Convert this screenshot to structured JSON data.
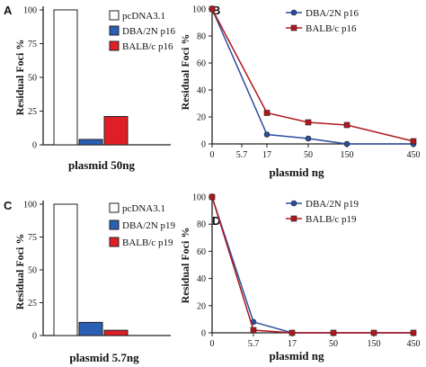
{
  "chart_data": [
    {
      "panel": "A",
      "type": "bar",
      "ylabel": "Residual Foci %",
      "xlabel": "plasmid 50ng",
      "ylim": [
        0,
        100
      ],
      "yticks": [
        "0",
        "25",
        "50",
        "75",
        "100"
      ],
      "colors": [
        "#ffffff",
        "#2b5fb4",
        "#e01e26"
      ],
      "series": [
        {
          "name": "pcDNA3.1",
          "values": [
            100
          ]
        },
        {
          "name": "DBA/2N p16",
          "values": [
            4
          ]
        },
        {
          "name": "BALB/c p16",
          "values": [
            21
          ]
        }
      ]
    },
    {
      "panel": "B",
      "type": "line",
      "ylabel": "Residual Foci %",
      "xlabel": "plasmid ng",
      "ylim": [
        0,
        100
      ],
      "yticks": [
        "0",
        "20",
        "40",
        "60",
        "80",
        "100"
      ],
      "x": [
        "0",
        "5.7",
        "17",
        "50",
        "150",
        "450"
      ],
      "series": [
        {
          "name": "DBA/2N p16",
          "color": "#2b4fa0",
          "marker": "circle",
          "values": [
            100,
            null,
            7,
            4,
            0,
            0
          ]
        },
        {
          "name": "BALB/c p16",
          "color": "#b0181e",
          "marker": "square",
          "values": [
            100,
            null,
            23,
            16,
            14,
            2
          ]
        }
      ]
    },
    {
      "panel": "C",
      "type": "bar",
      "ylabel": "Residual Foci %",
      "xlabel": "plasmid 5.7ng",
      "ylim": [
        0,
        100
      ],
      "yticks": [
        "0",
        "25",
        "50",
        "75",
        "100"
      ],
      "colors": [
        "#ffffff",
        "#2b5fb4",
        "#e01e26"
      ],
      "series": [
        {
          "name": "pcDNA3.1",
          "values": [
            100
          ]
        },
        {
          "name": "DBA/2N p19",
          "values": [
            10
          ]
        },
        {
          "name": "BALB/c p19",
          "values": [
            4
          ]
        }
      ]
    },
    {
      "panel": "D",
      "type": "line",
      "ylabel": "Residual Foci %",
      "xlabel": "plasmid ng",
      "ylim": [
        0,
        100
      ],
      "yticks": [
        "0",
        "20",
        "40",
        "60",
        "80",
        "100"
      ],
      "x": [
        "0",
        "5.7",
        "17",
        "50",
        "150",
        "450"
      ],
      "series": [
        {
          "name": "DBA/2N p19",
          "color": "#2b4fa0",
          "marker": "circle",
          "values": [
            100,
            8,
            0,
            0,
            0,
            0
          ]
        },
        {
          "name": "BALB/c p19",
          "color": "#b0181e",
          "marker": "square",
          "values": [
            100,
            2,
            0,
            0,
            0,
            0
          ]
        }
      ]
    }
  ]
}
